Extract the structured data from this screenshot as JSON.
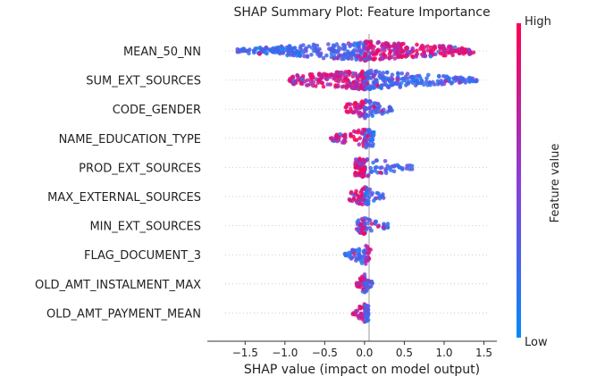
{
  "chart_data": {
    "type": "scatter",
    "subtype": "shap-beeswarm",
    "title": "SHAP Summary Plot: Feature Importance",
    "xlabel": "SHAP value (impact on model output)",
    "xlim": [
      -1.75,
      1.55
    ],
    "xticks": [
      -1.5,
      -1.0,
      -0.5,
      0.0,
      0.5,
      1.0,
      1.5
    ],
    "xtick_labels": [
      "−1.5",
      "−1.0",
      "−0.5",
      "0.0",
      "0.5",
      "1.0",
      "1.5"
    ],
    "grid": "dotted horizontal row guides",
    "colorbar": {
      "label": "Feature value",
      "high_label": "High",
      "low_label": "Low",
      "high_color": "#ff0052",
      "mid_color": "#8a3dd8",
      "low_color": "#008bfb"
    },
    "features": [
      {
        "name": "MEAN_50_NN",
        "min": -1.62,
        "max": 1.38,
        "low_side": "negative"
      },
      {
        "name": "SUM_EXT_SOURCES",
        "min": -0.95,
        "max": 1.42,
        "low_side": "positive"
      },
      {
        "name": "CODE_GENDER",
        "min": -0.25,
        "max": 0.35,
        "low_side": "positive"
      },
      {
        "name": "NAME_EDUCATION_TYPE",
        "min": -0.45,
        "max": 0.12,
        "low_side": "positive"
      },
      {
        "name": "PROD_EXT_SOURCES",
        "min": -0.12,
        "max": 0.62,
        "low_side": "positive"
      },
      {
        "name": "MAX_EXTERNAL_SOURCES",
        "min": -0.2,
        "max": 0.25,
        "low_side": "positive"
      },
      {
        "name": "MIN_EXT_SOURCES",
        "min": -0.1,
        "max": 0.3,
        "low_side": "positive"
      },
      {
        "name": "FLAG_DOCUMENT_3",
        "min": -0.25,
        "max": 0.08,
        "low_side": "negative"
      },
      {
        "name": "OLD_AMT_INSTALMENT_MAX",
        "min": -0.1,
        "max": 0.1,
        "low_side": "positive"
      },
      {
        "name": "OLD_AMT_PAYMENT_MEAN",
        "min": -0.15,
        "max": 0.05,
        "low_side": "positive"
      }
    ]
  }
}
